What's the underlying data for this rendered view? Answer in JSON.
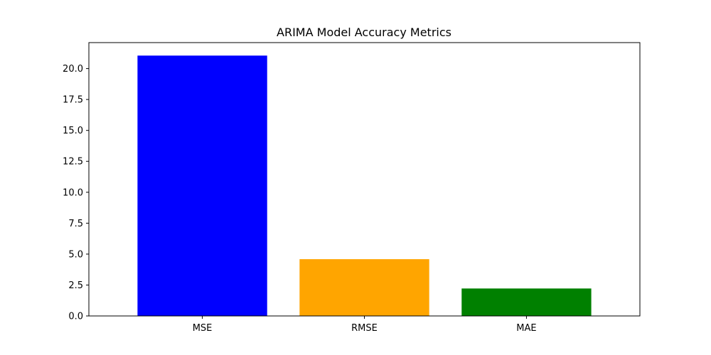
{
  "chart_data": {
    "type": "bar",
    "title": "ARIMA Model Accuracy Metrics",
    "xlabel": "",
    "ylabel": "",
    "categories": [
      "MSE",
      "RMSE",
      "MAE"
    ],
    "values": [
      21.05,
      4.59,
      2.22
    ],
    "colors": [
      "#0000ff",
      "#ffa500",
      "#008000"
    ],
    "ylim": [
      0,
      22.1
    ],
    "yticks": [
      0.0,
      2.5,
      5.0,
      7.5,
      10.0,
      12.5,
      15.0,
      17.5,
      20.0
    ],
    "ytick_labels": [
      "0.0",
      "2.5",
      "5.0",
      "7.5",
      "10.0",
      "12.5",
      "15.0",
      "17.5",
      "20.0"
    ],
    "grid": false,
    "legend": "none"
  }
}
